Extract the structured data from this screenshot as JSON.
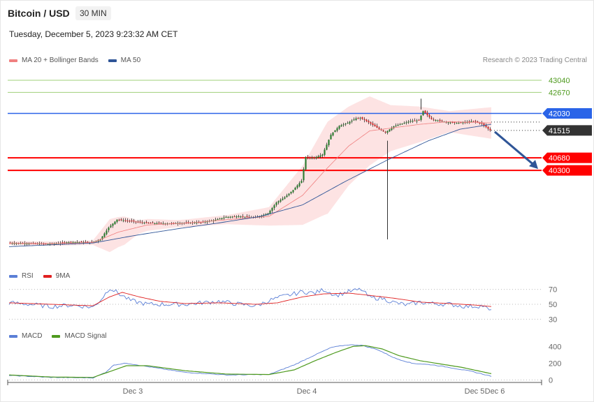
{
  "header": {
    "title": "Bitcoin / USD",
    "timeframe": "30 MIN",
    "datetime": "Tuesday, December 5, 2023 9:23:32 AM CET",
    "copyright": "Research © 2023 Trading Central"
  },
  "legends": {
    "price": [
      {
        "label": "MA 20 + Bollinger Bands",
        "color": "#f08080"
      },
      {
        "label": "MA 50",
        "color": "#2f5597"
      }
    ],
    "rsi": [
      {
        "label": "RSI",
        "color": "#5b7fd6"
      },
      {
        "label": "9MA",
        "color": "#e02020"
      }
    ],
    "macd": [
      {
        "label": "MACD",
        "color": "#5b7fd6"
      },
      {
        "label": "MACD Signal",
        "color": "#4e9a1e"
      }
    ]
  },
  "chart_data": [
    {
      "type": "candlestick",
      "title": "Bitcoin / USD",
      "ylim": [
        37500,
        43400
      ],
      "x_labels": [
        "Dec 3",
        "Dec 4",
        "Dec 5",
        "Dec 6"
      ],
      "levels": [
        {
          "value": 43040,
          "label": "43040",
          "kind": "resistance-far",
          "color": "#9fd07a",
          "text_color": "#4e9a1e"
        },
        {
          "value": 42670,
          "label": "42670",
          "kind": "resistance-far",
          "color": "#9fd07a",
          "text_color": "#4e9a1e"
        },
        {
          "value": 42030,
          "label": "42030",
          "kind": "resistance",
          "color": "#2a64e8",
          "text_color": "#ffffff"
        },
        {
          "value": 41515,
          "label": "41515",
          "kind": "last-price",
          "color": "#333333",
          "text_color": "#ffffff"
        },
        {
          "value": 40680,
          "label": "40680",
          "kind": "support",
          "color": "#ff0000",
          "text_color": "#ffffff"
        },
        {
          "value": 40300,
          "label": "40300",
          "kind": "support",
          "color": "#ff0000",
          "text_color": "#ffffff"
        }
      ],
      "forecast_arrow": {
        "from": 41515,
        "to": 40300,
        "direction": "down"
      },
      "series_keypoints": {
        "close": [
          [
            0,
            38090
          ],
          [
            8,
            38080
          ],
          [
            20,
            38060
          ],
          [
            30,
            38120
          ],
          [
            40,
            38110
          ],
          [
            44,
            38200
          ],
          [
            48,
            38560
          ],
          [
            52,
            38800
          ],
          [
            58,
            38760
          ],
          [
            66,
            38700
          ],
          [
            76,
            38680
          ],
          [
            84,
            38700
          ],
          [
            92,
            38720
          ],
          [
            98,
            38780
          ],
          [
            104,
            38880
          ],
          [
            110,
            38900
          ],
          [
            118,
            38860
          ],
          [
            124,
            38990
          ],
          [
            128,
            39320
          ],
          [
            132,
            39480
          ],
          [
            136,
            39700
          ],
          [
            140,
            39980
          ],
          [
            142,
            40700
          ],
          [
            146,
            40680
          ],
          [
            150,
            40780
          ],
          [
            154,
            41380
          ],
          [
            158,
            41650
          ],
          [
            162,
            41740
          ],
          [
            166,
            41880
          ],
          [
            168,
            41900
          ],
          [
            172,
            41760
          ],
          [
            176,
            41600
          ],
          [
            180,
            41450
          ],
          [
            184,
            41640
          ],
          [
            188,
            41720
          ],
          [
            192,
            41800
          ],
          [
            196,
            41820
          ],
          [
            198,
            42100
          ],
          [
            202,
            41860
          ],
          [
            206,
            41800
          ],
          [
            210,
            41760
          ],
          [
            214,
            41740
          ],
          [
            218,
            41760
          ],
          [
            222,
            41800
          ],
          [
            226,
            41720
          ],
          [
            230,
            41515
          ]
        ],
        "ma20": [
          [
            0,
            38090
          ],
          [
            20,
            38070
          ],
          [
            40,
            38100
          ],
          [
            52,
            38420
          ],
          [
            66,
            38640
          ],
          [
            84,
            38690
          ],
          [
            104,
            38800
          ],
          [
            124,
            38900
          ],
          [
            140,
            39540
          ],
          [
            150,
            40250
          ],
          [
            162,
            41040
          ],
          [
            172,
            41500
          ],
          [
            184,
            41600
          ],
          [
            196,
            41700
          ],
          [
            210,
            41780
          ],
          [
            230,
            41740
          ]
        ],
        "ma50": [
          [
            0,
            37980
          ],
          [
            40,
            38090
          ],
          [
            60,
            38320
          ],
          [
            80,
            38520
          ],
          [
            100,
            38700
          ],
          [
            120,
            38900
          ],
          [
            140,
            39250
          ],
          [
            160,
            39950
          ],
          [
            180,
            40600
          ],
          [
            200,
            41200
          ],
          [
            215,
            41550
          ],
          [
            230,
            41700
          ]
        ],
        "bb_width": [
          [
            0,
            60
          ],
          [
            40,
            70
          ],
          [
            48,
            500
          ],
          [
            55,
            430
          ],
          [
            62,
            200
          ],
          [
            80,
            110
          ],
          [
            104,
            140
          ],
          [
            124,
            280
          ],
          [
            140,
            900
          ],
          [
            152,
            1400
          ],
          [
            162,
            1200
          ],
          [
            172,
            1050
          ],
          [
            182,
            700
          ],
          [
            196,
            540
          ],
          [
            210,
            320
          ],
          [
            230,
            480
          ]
        ]
      }
    },
    {
      "type": "line",
      "title": "RSI",
      "ylim": [
        20,
        80
      ],
      "y_ticks": [
        70,
        50,
        30
      ],
      "series_keypoints": {
        "rsi": [
          [
            0,
            52
          ],
          [
            10,
            50
          ],
          [
            20,
            47
          ],
          [
            30,
            49
          ],
          [
            40,
            46
          ],
          [
            44,
            57
          ],
          [
            48,
            72
          ],
          [
            52,
            65
          ],
          [
            58,
            55
          ],
          [
            66,
            50
          ],
          [
            76,
            50
          ],
          [
            84,
            50
          ],
          [
            92,
            52
          ],
          [
            100,
            54
          ],
          [
            110,
            50
          ],
          [
            118,
            48
          ],
          [
            124,
            55
          ],
          [
            130,
            60
          ],
          [
            136,
            64
          ],
          [
            140,
            67
          ],
          [
            146,
            65
          ],
          [
            150,
            70
          ],
          [
            156,
            62
          ],
          [
            162,
            67
          ],
          [
            168,
            70
          ],
          [
            172,
            59
          ],
          [
            178,
            58
          ],
          [
            184,
            52
          ],
          [
            190,
            49
          ],
          [
            196,
            53
          ],
          [
            202,
            51
          ],
          [
            210,
            50
          ],
          [
            218,
            47
          ],
          [
            226,
            48
          ],
          [
            230,
            40
          ]
        ],
        "ma9": [
          [
            0,
            52
          ],
          [
            20,
            50
          ],
          [
            40,
            48
          ],
          [
            48,
            60
          ],
          [
            54,
            66
          ],
          [
            62,
            60
          ],
          [
            72,
            54
          ],
          [
            84,
            51
          ],
          [
            100,
            52
          ],
          [
            118,
            50
          ],
          [
            128,
            52
          ],
          [
            140,
            60
          ],
          [
            150,
            64
          ],
          [
            162,
            65
          ],
          [
            172,
            62
          ],
          [
            184,
            58
          ],
          [
            196,
            53
          ],
          [
            210,
            51
          ],
          [
            222,
            49
          ],
          [
            230,
            47
          ]
        ]
      }
    },
    {
      "type": "line",
      "title": "MACD",
      "ylim": [
        -30,
        470
      ],
      "y_ticks": [
        400,
        200,
        0
      ],
      "series_keypoints": {
        "macd": [
          [
            0,
            55
          ],
          [
            20,
            30
          ],
          [
            40,
            25
          ],
          [
            46,
            90
          ],
          [
            50,
            180
          ],
          [
            56,
            200
          ],
          [
            66,
            160
          ],
          [
            84,
            90
          ],
          [
            104,
            60
          ],
          [
            124,
            65
          ],
          [
            136,
            180
          ],
          [
            146,
            300
          ],
          [
            154,
            390
          ],
          [
            162,
            420
          ],
          [
            168,
            415
          ],
          [
            176,
            360
          ],
          [
            184,
            260
          ],
          [
            192,
            200
          ],
          [
            202,
            180
          ],
          [
            210,
            150
          ],
          [
            220,
            105
          ],
          [
            230,
            45
          ]
        ],
        "signal": [
          [
            0,
            60
          ],
          [
            20,
            35
          ],
          [
            40,
            30
          ],
          [
            48,
            100
          ],
          [
            56,
            170
          ],
          [
            66,
            170
          ],
          [
            84,
            110
          ],
          [
            104,
            70
          ],
          [
            124,
            65
          ],
          [
            136,
            120
          ],
          [
            146,
            230
          ],
          [
            156,
            330
          ],
          [
            164,
            400
          ],
          [
            170,
            410
          ],
          [
            178,
            370
          ],
          [
            186,
            290
          ],
          [
            196,
            230
          ],
          [
            206,
            190
          ],
          [
            216,
            150
          ],
          [
            230,
            75
          ]
        ]
      }
    }
  ]
}
